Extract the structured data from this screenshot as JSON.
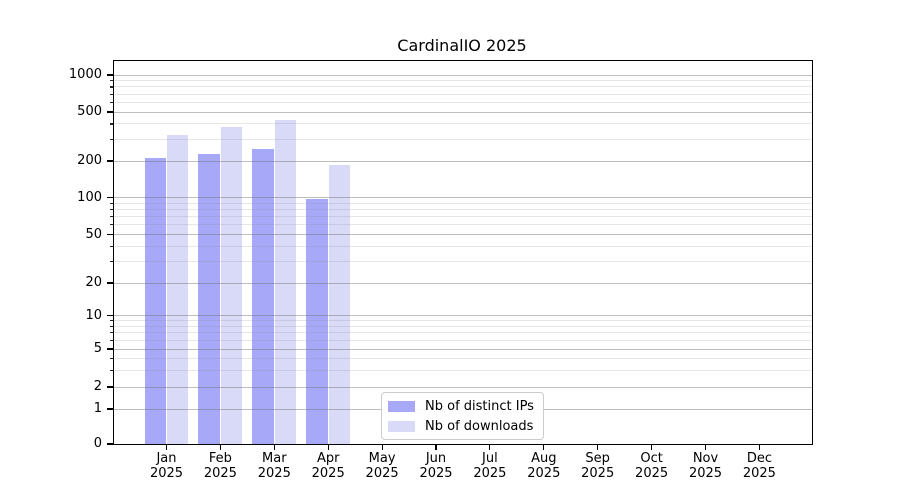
{
  "window": {
    "background": "#ffffff"
  },
  "chart_data": {
    "type": "bar",
    "title": "CardinalIO 2025",
    "xlabel": "",
    "ylabel": "",
    "scale": "symlog",
    "grid": "on",
    "categories": [
      "Jan",
      "Feb",
      "Mar",
      "Apr",
      "May",
      "Jun",
      "Jul",
      "Aug",
      "Sep",
      "Oct",
      "Nov",
      "Dec"
    ],
    "category_year": "2025",
    "series": [
      {
        "name": "Nb of distinct IPs",
        "color": "#a8a8f8",
        "values": [
          210,
          230,
          248,
          97,
          0,
          0,
          0,
          0,
          0,
          0,
          0,
          0
        ]
      },
      {
        "name": "Nb of downloads",
        "color": "#d9d9f8",
        "values": [
          325,
          375,
          430,
          184,
          0,
          0,
          0,
          0,
          0,
          0,
          0,
          0
        ]
      }
    ],
    "y_ticks": [
      1000,
      500,
      200,
      100,
      50,
      20,
      10,
      5,
      2,
      1,
      0
    ],
    "y_minor_ticks": [
      900,
      800,
      700,
      600,
      400,
      300,
      90,
      80,
      70,
      60,
      40,
      30,
      9,
      8,
      7,
      6,
      4,
      3
    ],
    "ylim": [
      0,
      1258
    ],
    "legend": {
      "position": "lower center-right inside plot",
      "entries": [
        "Nb of distinct IPs",
        "Nb of downloads"
      ]
    },
    "colors": {
      "axis": "#000000",
      "major_grid": "rgba(110,110,110,0.45)",
      "minor_grid": "rgba(140,140,140,0.22)",
      "legend_border": "#cccccc",
      "text": "#000000"
    }
  }
}
